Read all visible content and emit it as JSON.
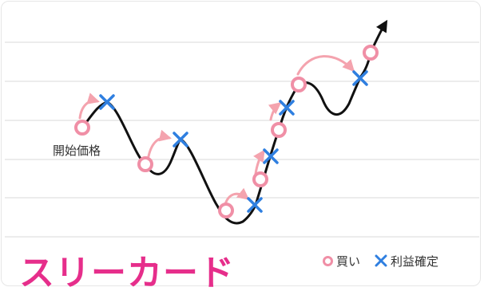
{
  "diagram": {
    "start_label": "開始価格",
    "title": "スリーカード",
    "legend": {
      "buy": "買い",
      "take_profit": "利益確定"
    },
    "colors": {
      "curve": "#111111",
      "buy_marker": "#f08fa6",
      "take_profit_marker": "#2f7fe0",
      "arrow": "#f4a3ae",
      "title": "#e62e8b",
      "grid": "#d9d9d9"
    }
  }
}
